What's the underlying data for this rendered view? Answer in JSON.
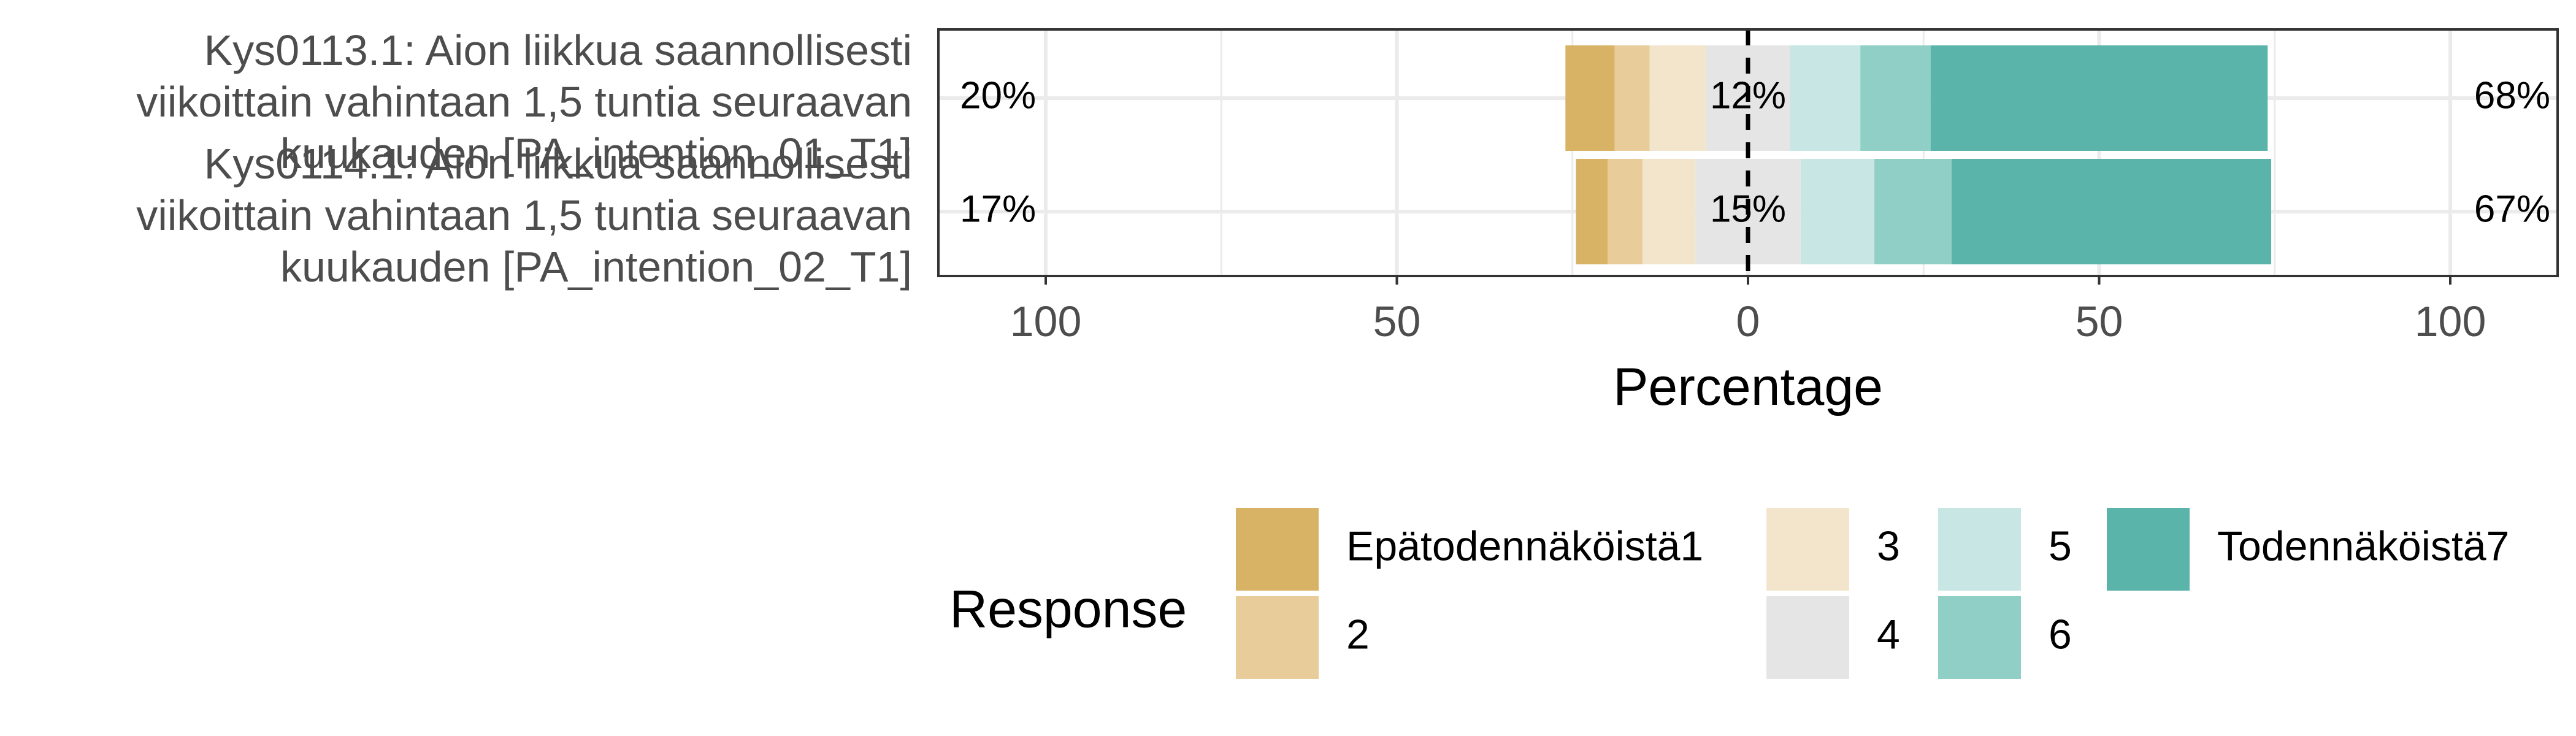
{
  "chart_data": {
    "type": "bar",
    "orientation": "horizontal-diverging",
    "xlabel": "Percentage",
    "x_ticks": [
      "100",
      "50",
      "0",
      "50",
      "100"
    ],
    "xlim": [
      -100,
      100
    ],
    "grid": true,
    "legend_title": "Response",
    "legend_position": "bottom",
    "responses": [
      {
        "label": "Epätodennäköistä1",
        "color": "#D9B365"
      },
      {
        "label": "2",
        "color": "#E8CC9A"
      },
      {
        "label": "3",
        "color": "#F3E5CC"
      },
      {
        "label": "4",
        "color": "#E5E5E5"
      },
      {
        "label": "5",
        "color": "#C8E6E3"
      },
      {
        "label": "6",
        "color": "#90CFC5"
      },
      {
        "label": "Todennäköistä7",
        "color": "#5AB4AA"
      }
    ],
    "items": [
      {
        "label_lines": [
          "Kys0113.1: Aion liikkua saannollisesti",
          "viikoittain vahintaan 1,5 tuntia seuraavan",
          "kuukauden [PA_intention_01_T1]"
        ],
        "values": [
          7,
          5,
          8,
          12,
          10,
          10,
          48
        ],
        "low_label": "20%",
        "neutral_label": "12%",
        "high_label": "68%"
      },
      {
        "label_lines": [
          "Kys0114.1: Aion liikkua saannollisesti",
          "viikoittain vahintaan 1,5 tuntia seuraavan",
          "kuukauden [PA_intention_02_T1]"
        ],
        "values": [
          4.5,
          5,
          7.5,
          15,
          10.5,
          11,
          45.5
        ],
        "low_label": "17%",
        "neutral_label": "15%",
        "high_label": "67%"
      }
    ]
  }
}
